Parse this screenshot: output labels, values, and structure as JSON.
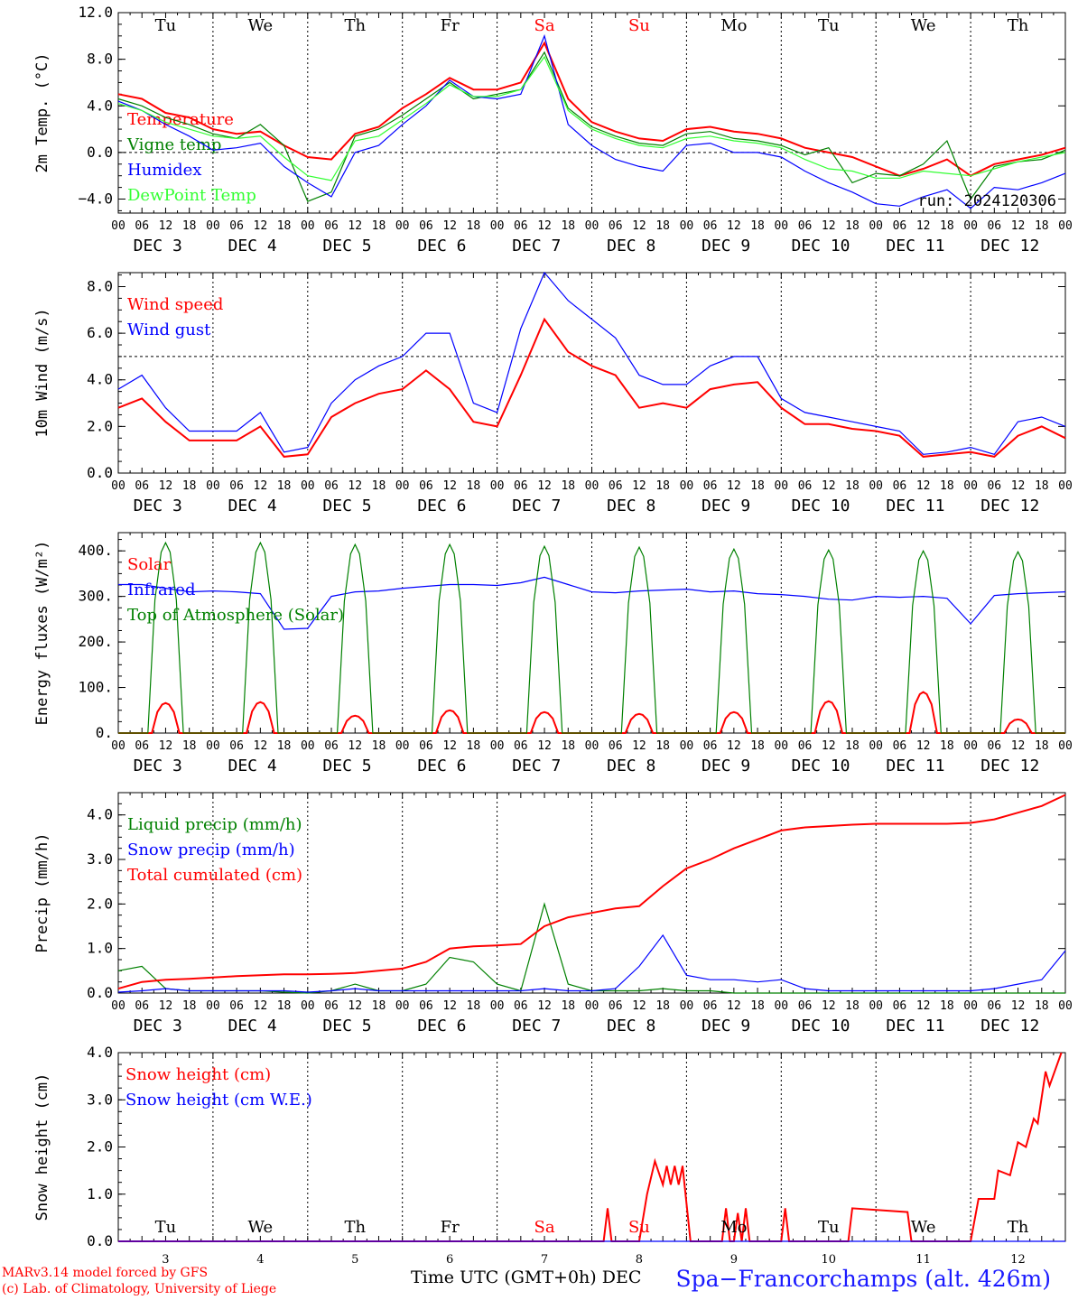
{
  "meta": {
    "station": "Spa−Francorchamps (alt. 426m)",
    "credit_model": "MARv3.14 model forced by GFS",
    "credit_lab": "(c) Lab. of Climatology, University of Liege",
    "xlabel": "Time UTC (GMT+0h)",
    "xlabel_suffix": "DEC",
    "run": "run: 2024120306"
  },
  "colors": {
    "red": "#ff0000",
    "green": "#008000",
    "blue": "#0000ff",
    "lightgreen": "#33ff33"
  },
  "chart_data": [
    {
      "type": "line",
      "ylabel": "2m Temp. (°C)",
      "ylim": [
        -5.2,
        12
      ],
      "yticks": [
        -4,
        0,
        4,
        8,
        12
      ],
      "ytick_labels": [
        "−4.0",
        "0.0",
        "4.0",
        "8.0",
        "12.0"
      ],
      "reference_line": 0,
      "x_hours": [
        0,
        6,
        12,
        18,
        24,
        30,
        36,
        42,
        48,
        54,
        60,
        66,
        72,
        78,
        84,
        90,
        96,
        102,
        108,
        114,
        120,
        126,
        132,
        138,
        144,
        150,
        156,
        162,
        168,
        174,
        180,
        186,
        192,
        198,
        204,
        210,
        216,
        222,
        228,
        234,
        240
      ],
      "series": [
        {
          "name": "Temperature",
          "color": "#ff0000",
          "values": [
            5.0,
            4.6,
            3.4,
            3.0,
            2.0,
            1.6,
            1.8,
            0.6,
            -0.4,
            -0.6,
            1.6,
            2.2,
            3.8,
            5.0,
            6.4,
            5.4,
            5.4,
            6.0,
            9.4,
            4.6,
            2.6,
            1.8,
            1.2,
            1.0,
            2.0,
            2.2,
            1.8,
            1.6,
            1.2,
            0.4,
            0.0,
            -0.4,
            -1.2,
            -2.0,
            -1.4,
            -0.6,
            -2.0,
            -1.0,
            -0.6,
            -0.2,
            0.4
          ]
        },
        {
          "name": "Vigne temp",
          "color": "#008000",
          "values": [
            4.6,
            4.0,
            3.0,
            2.4,
            1.6,
            1.2,
            2.4,
            0.6,
            -4.2,
            -3.4,
            1.4,
            2.0,
            3.2,
            4.6,
            6.0,
            4.6,
            5.0,
            5.4,
            8.6,
            3.8,
            2.2,
            1.4,
            0.8,
            0.6,
            1.6,
            1.8,
            1.2,
            1.0,
            0.6,
            -0.2,
            0.4,
            -2.6,
            -1.8,
            -2.0,
            -1.0,
            1.0,
            -4.0,
            -1.2,
            -0.8,
            -0.6,
            0.2
          ]
        },
        {
          "name": "Humidex",
          "color": "#0000ff",
          "values": [
            4.4,
            3.6,
            2.4,
            1.4,
            0.2,
            0.4,
            0.8,
            -1.2,
            -2.6,
            -3.8,
            0.0,
            0.6,
            2.4,
            4.0,
            6.2,
            4.8,
            4.6,
            5.0,
            10.0,
            2.4,
            0.6,
            -0.6,
            -1.2,
            -1.6,
            0.6,
            0.8,
            0.0,
            0.0,
            -0.4,
            -1.6,
            -2.6,
            -3.4,
            -4.4,
            -4.6,
            -3.8,
            -3.2,
            -4.8,
            -3.0,
            -3.2,
            -2.6,
            -1.8
          ]
        },
        {
          "name": "DewPoint Temp",
          "color": "#33ff33",
          "values": [
            4.2,
            3.6,
            2.6,
            2.0,
            1.4,
            1.2,
            1.4,
            -0.4,
            -2.0,
            -2.4,
            1.0,
            1.4,
            2.8,
            4.2,
            5.8,
            4.8,
            4.8,
            5.4,
            8.2,
            3.6,
            2.0,
            1.2,
            0.6,
            0.4,
            1.2,
            1.4,
            1.0,
            0.8,
            0.4,
            -0.6,
            -1.4,
            -1.6,
            -2.2,
            -2.2,
            -1.6,
            -1.8,
            -2.0,
            -1.4,
            -0.8,
            -0.4,
            0.0
          ]
        }
      ]
    },
    {
      "type": "line",
      "ylabel": "10m Wind (m/s)",
      "ylim": [
        0,
        8.6
      ],
      "yticks": [
        0,
        2,
        4,
        6,
        8
      ],
      "ytick_labels": [
        "0.0",
        "2.0",
        "4.0",
        "6.0",
        "8.0"
      ],
      "reference_line": 5,
      "x_hours": [
        0,
        6,
        12,
        18,
        24,
        30,
        36,
        42,
        48,
        54,
        60,
        66,
        72,
        78,
        84,
        90,
        96,
        102,
        108,
        114,
        120,
        126,
        132,
        138,
        144,
        150,
        156,
        162,
        168,
        174,
        180,
        186,
        192,
        198,
        204,
        210,
        216,
        222,
        228,
        234,
        240
      ],
      "series": [
        {
          "name": "Wind speed",
          "color": "#ff0000",
          "values": [
            2.8,
            3.2,
            2.2,
            1.4,
            1.4,
            1.4,
            2.0,
            0.7,
            0.8,
            2.4,
            3.0,
            3.4,
            3.6,
            4.4,
            3.6,
            2.2,
            2.0,
            4.2,
            6.6,
            5.2,
            4.6,
            4.2,
            2.8,
            3.0,
            2.8,
            3.6,
            3.8,
            3.9,
            2.8,
            2.1,
            2.1,
            1.9,
            1.8,
            1.6,
            0.7,
            0.8,
            0.9,
            0.7,
            1.6,
            2.0,
            1.5
          ]
        },
        {
          "name": "Wind gust",
          "color": "#0000ff",
          "values": [
            3.6,
            4.2,
            2.8,
            1.8,
            1.8,
            1.8,
            2.6,
            0.9,
            1.1,
            3.0,
            4.0,
            4.6,
            5.0,
            6.0,
            6.0,
            3.0,
            2.6,
            6.2,
            8.6,
            7.4,
            6.6,
            5.8,
            4.2,
            3.8,
            3.8,
            4.6,
            5.0,
            5.0,
            3.2,
            2.6,
            2.4,
            2.2,
            2.0,
            1.8,
            0.8,
            0.9,
            1.1,
            0.8,
            2.2,
            2.4,
            2.0
          ]
        }
      ]
    },
    {
      "type": "line",
      "ylabel": "Energy fluxes (W/m²)",
      "ylim": [
        0,
        440
      ],
      "yticks": [
        0,
        100,
        200,
        300,
        400
      ],
      "ytick_labels": [
        "0.",
        "100.",
        "200.",
        "300.",
        "400."
      ],
      "x_hours": [
        0,
        6,
        12,
        18,
        24,
        30,
        36,
        42,
        48,
        54,
        60,
        66,
        72,
        78,
        84,
        90,
        96,
        102,
        108,
        114,
        120,
        126,
        132,
        138,
        144,
        150,
        156,
        162,
        168,
        174,
        180,
        186,
        192,
        198,
        204,
        210,
        216,
        222,
        228,
        234,
        240
      ],
      "series": [
        {
          "name": "Solar",
          "color": "#ff0000",
          "day_peaks": [
            66,
            68,
            38,
            50,
            46,
            42,
            46,
            70,
            90,
            30
          ]
        },
        {
          "name": "Infrared",
          "color": "#0000ff",
          "values": [
            326,
            326,
            318,
            310,
            312,
            310,
            306,
            228,
            230,
            300,
            310,
            312,
            318,
            322,
            326,
            326,
            324,
            330,
            342,
            326,
            310,
            308,
            312,
            314,
            316,
            310,
            312,
            306,
            304,
            300,
            294,
            292,
            300,
            298,
            300,
            296,
            240,
            302,
            306,
            308,
            310
          ]
        },
        {
          "name": "Top of Atmosphere (Solar)",
          "color": "#008000",
          "day_peaks": [
            418,
            418,
            414,
            414,
            410,
            408,
            404,
            402,
            400,
            398
          ]
        }
      ]
    },
    {
      "type": "line",
      "ylabel": "Precip (mm/h)",
      "ylim": [
        0,
        4.5
      ],
      "yticks": [
        0,
        1,
        2,
        3,
        4
      ],
      "ytick_labels": [
        "0.0",
        "1.0",
        "2.0",
        "3.0",
        "4.0"
      ],
      "x_hours": [
        0,
        6,
        12,
        18,
        24,
        30,
        36,
        42,
        48,
        54,
        60,
        66,
        72,
        78,
        84,
        90,
        96,
        102,
        108,
        114,
        120,
        126,
        132,
        138,
        144,
        150,
        156,
        162,
        168,
        174,
        180,
        186,
        192,
        198,
        204,
        210,
        216,
        222,
        228,
        234,
        240
      ],
      "series": [
        {
          "name": "Liquid precip (mm/h)",
          "color": "#008000",
          "values": [
            0.5,
            0.6,
            0.1,
            0.05,
            0.05,
            0.05,
            0.05,
            0.02,
            0.0,
            0.05,
            0.2,
            0.05,
            0.05,
            0.2,
            0.8,
            0.7,
            0.2,
            0.05,
            2.0,
            0.2,
            0.05,
            0.05,
            0.05,
            0.1,
            0.05,
            0.05,
            0.0,
            0.0,
            0.0,
            0.0,
            0.0,
            0.0,
            0.0,
            0.0,
            0.0,
            0.0,
            0.0,
            0.0,
            0.0,
            0.0,
            0.0
          ]
        },
        {
          "name": "Snow precip (mm/h)",
          "color": "#0000ff",
          "values": [
            0.02,
            0.05,
            0.1,
            0.05,
            0.05,
            0.05,
            0.05,
            0.05,
            0.02,
            0.05,
            0.1,
            0.05,
            0.05,
            0.05,
            0.05,
            0.05,
            0.05,
            0.05,
            0.1,
            0.05,
            0.05,
            0.1,
            0.6,
            1.3,
            0.4,
            0.3,
            0.3,
            0.25,
            0.3,
            0.1,
            0.05,
            0.05,
            0.05,
            0.05,
            0.05,
            0.05,
            0.05,
            0.1,
            0.2,
            0.3,
            0.95
          ]
        },
        {
          "name": "Total cumulated (cm)",
          "color": "#ff0000",
          "values": [
            0.1,
            0.25,
            0.3,
            0.32,
            0.35,
            0.38,
            0.4,
            0.42,
            0.42,
            0.43,
            0.45,
            0.5,
            0.55,
            0.7,
            1.0,
            1.05,
            1.07,
            1.1,
            1.5,
            1.7,
            1.8,
            1.9,
            1.95,
            2.4,
            2.8,
            3.0,
            3.25,
            3.45,
            3.65,
            3.72,
            3.75,
            3.78,
            3.8,
            3.8,
            3.8,
            3.8,
            3.82,
            3.9,
            4.05,
            4.2,
            4.45
          ]
        }
      ]
    },
    {
      "type": "line",
      "ylabel": "Snow height (cm)",
      "ylim": [
        0,
        4
      ],
      "yticks": [
        0,
        1,
        2,
        3,
        4
      ],
      "ytick_labels": [
        "0.0",
        "1.0",
        "2.0",
        "3.0",
        "4.0"
      ],
      "series": [
        {
          "name": "Snow height (cm)",
          "color": "#ff0000",
          "points": [
            [
              0,
              0
            ],
            [
              123,
              0
            ],
            [
              124,
              0.7
            ],
            [
              125,
              0
            ],
            [
              132,
              0
            ],
            [
              134,
              1.0
            ],
            [
              136,
              1.7
            ],
            [
              138,
              1.2
            ],
            [
              139,
              1.6
            ],
            [
              140,
              1.2
            ],
            [
              141,
              1.6
            ],
            [
              142,
              1.2
            ],
            [
              143,
              1.6
            ],
            [
              145,
              0
            ],
            [
              153,
              0
            ],
            [
              154,
              0.7
            ],
            [
              155,
              0
            ],
            [
              156,
              0
            ],
            [
              157,
              0.6
            ],
            [
              158,
              0
            ],
            [
              159,
              0.7
            ],
            [
              160,
              0
            ],
            [
              168,
              0
            ],
            [
              169,
              0.7
            ],
            [
              170,
              0
            ],
            [
              185,
              0
            ],
            [
              186,
              0.7
            ],
            [
              200,
              0.62
            ],
            [
              201,
              0
            ],
            [
              216,
              0
            ],
            [
              218,
              0.9
            ],
            [
              222,
              0.9
            ],
            [
              223,
              1.5
            ],
            [
              226,
              1.4
            ],
            [
              228,
              2.1
            ],
            [
              230,
              2.0
            ],
            [
              232,
              2.6
            ],
            [
              233,
              2.5
            ],
            [
              235,
              3.6
            ],
            [
              236,
              3.3
            ],
            [
              239,
              4.0
            ]
          ]
        },
        {
          "name": "Snow height (cm W.E.)",
          "color": "#0000ff",
          "points": [
            [
              0,
              0
            ],
            [
              240,
              0
            ]
          ]
        }
      ],
      "day_numbers": [
        "3",
        "4",
        "5",
        "6",
        "7",
        "8",
        "9",
        "10",
        "11",
        "12"
      ]
    }
  ],
  "axis": {
    "weekdays": [
      "Tu",
      "We",
      "Th",
      "Fr",
      "Sa",
      "Su",
      "Mo",
      "Tu",
      "We",
      "Th"
    ],
    "weekday_colors": [
      "#000000",
      "#000000",
      "#000000",
      "#000000",
      "#ff0000",
      "#ff0000",
      "#000000",
      "#000000",
      "#000000",
      "#000000"
    ],
    "hour_labels": [
      "00",
      "06",
      "12",
      "18"
    ],
    "end_label": "00",
    "dates": [
      "DEC  3",
      "DEC  4",
      "DEC  5",
      "DEC  6",
      "DEC  7",
      "DEC  8",
      "DEC  9",
      "DEC 10",
      "DEC 11",
      "DEC 12"
    ]
  }
}
